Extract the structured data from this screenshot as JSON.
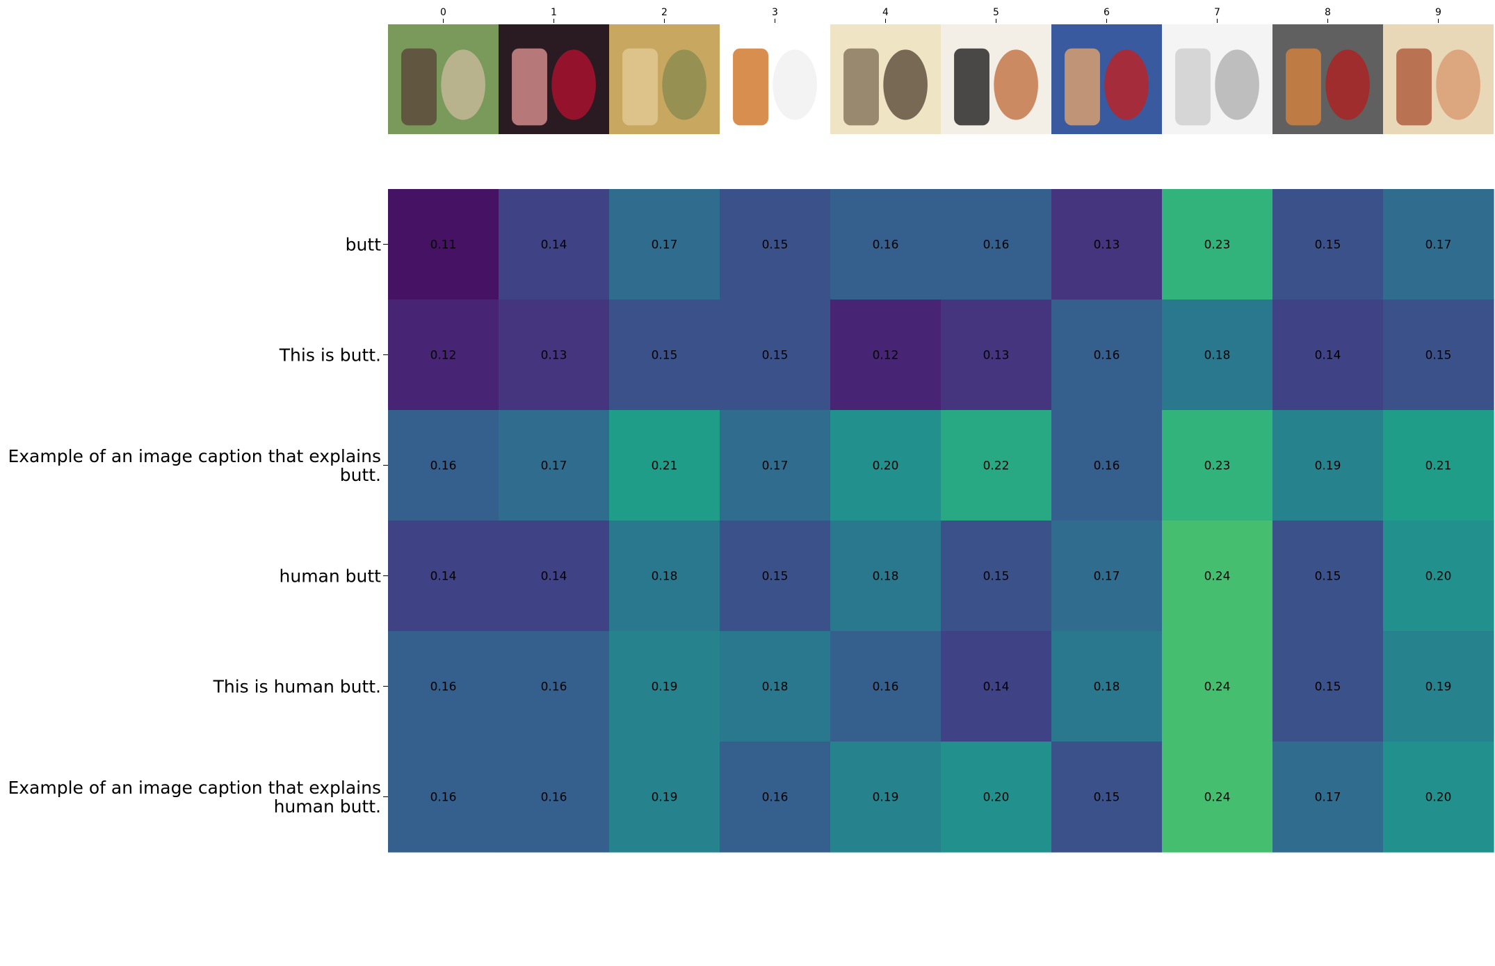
{
  "chart_data": {
    "type": "heatmap",
    "title": "",
    "xlabel": "",
    "ylabel": "",
    "x_tick_labels": [
      "0",
      "1",
      "2",
      "3",
      "4",
      "5",
      "6",
      "7",
      "8",
      "9"
    ],
    "y_tick_labels": [
      [
        "butt"
      ],
      [
        "This is butt."
      ],
      [
        "Example of an image caption that explains",
        "butt."
      ],
      [
        "human butt"
      ],
      [
        "This is human butt."
      ],
      [
        "Example of an image caption that explains",
        "human butt."
      ]
    ],
    "values": [
      [
        0.11,
        0.14,
        0.17,
        0.15,
        0.16,
        0.16,
        0.13,
        0.23,
        0.15,
        0.17
      ],
      [
        0.12,
        0.13,
        0.15,
        0.15,
        0.12,
        0.13,
        0.16,
        0.18,
        0.14,
        0.15
      ],
      [
        0.16,
        0.17,
        0.21,
        0.17,
        0.2,
        0.22,
        0.16,
        0.23,
        0.19,
        0.21
      ],
      [
        0.14,
        0.14,
        0.18,
        0.15,
        0.18,
        0.15,
        0.17,
        0.24,
        0.15,
        0.2
      ],
      [
        0.16,
        0.16,
        0.19,
        0.18,
        0.16,
        0.14,
        0.18,
        0.24,
        0.15,
        0.19
      ],
      [
        0.16,
        0.16,
        0.19,
        0.16,
        0.19,
        0.2,
        0.15,
        0.24,
        0.17,
        0.2
      ]
    ],
    "value_format": "0.00",
    "color_scale": {
      "name": "viridis",
      "vmin": 0.1,
      "vmax": 0.3,
      "stops": [
        "#440154",
        "#482878",
        "#3e4989",
        "#31688e",
        "#26828e",
        "#1f9e89",
        "#35b779",
        "#6ece58",
        "#b5de2b",
        "#fde725"
      ]
    },
    "thumbnails": [
      {
        "icon": "two-people-outdoors-photo",
        "colors": [
          "#7a9a5c",
          "#5d4a3a",
          "#c8b89a"
        ]
      },
      {
        "icon": "stage-performer-photo",
        "colors": [
          "#2a1a22",
          "#d08a8a",
          "#b01030"
        ]
      },
      {
        "icon": "abstract-panels-photo",
        "colors": [
          "#c8a860",
          "#e0c890",
          "#8a8a50"
        ]
      },
      {
        "icon": "cigarette-icon",
        "colors": [
          "#ffffff",
          "#d07a30",
          "#f0f0f0"
        ]
      },
      {
        "icon": "vintage-sketch-drawing",
        "colors": [
          "#efe4c4",
          "#8a7a60",
          "#5a4a3a"
        ]
      },
      {
        "icon": "vintage-illustration-couple",
        "colors": [
          "#f4efe6",
          "#2a2a2a",
          "#c07040"
        ]
      },
      {
        "icon": "smiling-person-photo",
        "colors": [
          "#3a5aa0",
          "#d8a070",
          "#c02020"
        ]
      },
      {
        "icon": "white-sculpture-photo",
        "colors": [
          "#f4f4f4",
          "#d0d0d0",
          "#b0b0b0"
        ]
      },
      {
        "icon": "colorful-objects-photo",
        "colors": [
          "#606060",
          "#d08040",
          "#b02020"
        ]
      },
      {
        "icon": "fresco-painting",
        "colors": [
          "#e8d8b8",
          "#b06040",
          "#d89a70"
        ]
      }
    ],
    "grid": false,
    "legend": "none",
    "colorbar": false
  }
}
